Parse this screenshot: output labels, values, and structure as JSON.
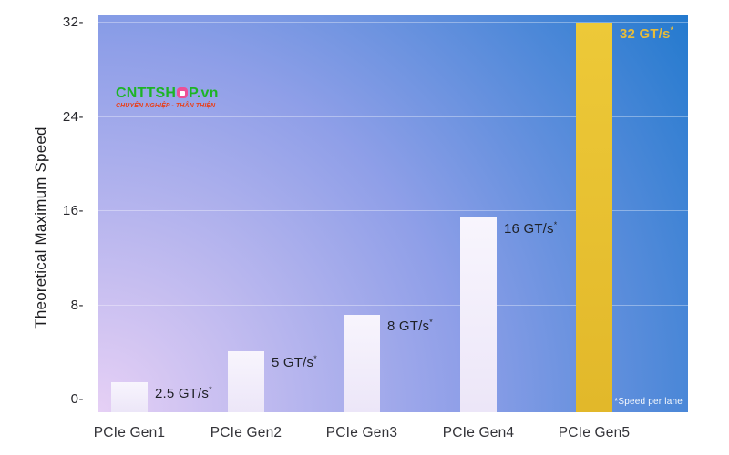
{
  "chart_data": {
    "type": "bar",
    "title": "",
    "ylabel": "Theoretical Maximum Speed",
    "xlabel": "",
    "ylim": [
      0,
      32
    ],
    "yticks": [
      0,
      8,
      16,
      24,
      32
    ],
    "ytick_suffix": "-",
    "grid": "horizontal",
    "legend_position": "none",
    "categories": [
      "PCIe Gen1",
      "PCIe Gen2",
      "PCIe Gen3",
      "PCIe Gen4",
      "PCIe Gen5"
    ],
    "values": [
      2.5,
      5,
      8,
      16,
      32
    ],
    "value_labels": [
      "2.5 GT/s",
      "5 GT/s",
      "8 GT/s",
      "16 GT/s",
      "32 GT/s"
    ],
    "label_suffix": "*",
    "footnote": "*Speed per lane",
    "highlight_index": 4,
    "colors": {
      "bar": "#f3eefb",
      "highlight_bar": "#e8c130",
      "highlight_label": "#e7bc3a",
      "data_label": "#1f2126",
      "gridline": "rgba(255,255,255,0.35)",
      "background_gradient": [
        "#e6d0f5",
        "#8f9fe8",
        "#1e78cd"
      ],
      "footnote_text": "#ffffff"
    }
  },
  "watermark": {
    "brand_left": "CNTTSH",
    "brand_right": "P.vn",
    "tagline": "CHUYÊN NGHIỆP - THÂN THIỆN",
    "brand_color": "#1cb425",
    "tagline_color": "#e8411d",
    "logo_o_color": "#ec4f96"
  }
}
